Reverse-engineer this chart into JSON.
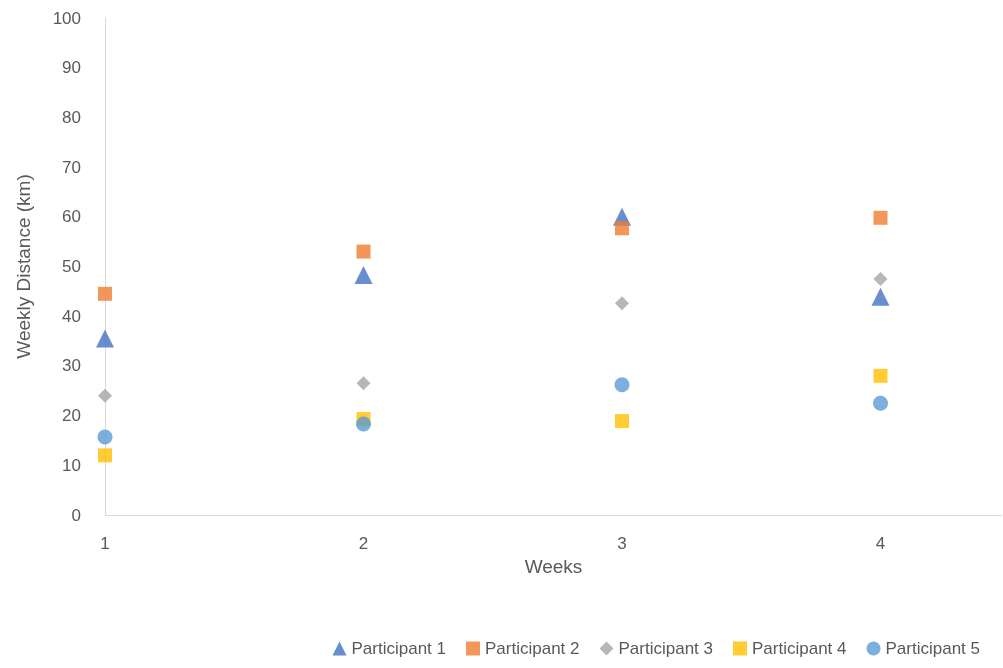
{
  "chart_data": {
    "type": "scatter",
    "xlabel": "Weeks",
    "ylabel": "Weekly Distance (km)",
    "x": [
      1,
      2,
      3,
      4
    ],
    "xlim": [
      1,
      4.47
    ],
    "xticks": [
      1,
      2,
      3,
      4
    ],
    "ylim": [
      0,
      100
    ],
    "yticks": [
      0,
      10,
      20,
      30,
      40,
      50,
      60,
      70,
      80,
      90,
      100
    ],
    "grid": false,
    "legend": "bottom",
    "series": [
      {
        "name": "Participant 1",
        "color": "#4472c4",
        "marker": "triangle",
        "values": [
          35.5,
          48.3,
          60,
          43.9
        ]
      },
      {
        "name": "Participant 2",
        "color": "#ed7d31",
        "marker": "square",
        "values": [
          44.5,
          53,
          57.7,
          59.8
        ]
      },
      {
        "name": "Participant 3",
        "color": "#a5a5a5",
        "marker": "diamond",
        "values": [
          24,
          26.5,
          42.6,
          47.5
        ]
      },
      {
        "name": "Participant 4",
        "color": "#ffc000",
        "marker": "square",
        "values": [
          12,
          19.3,
          18.9,
          28
        ]
      },
      {
        "name": "Participant 5",
        "color": "#5b9bd5",
        "marker": "circle",
        "values": [
          15.7,
          18.3,
          26.2,
          22.5
        ]
      }
    ]
  }
}
